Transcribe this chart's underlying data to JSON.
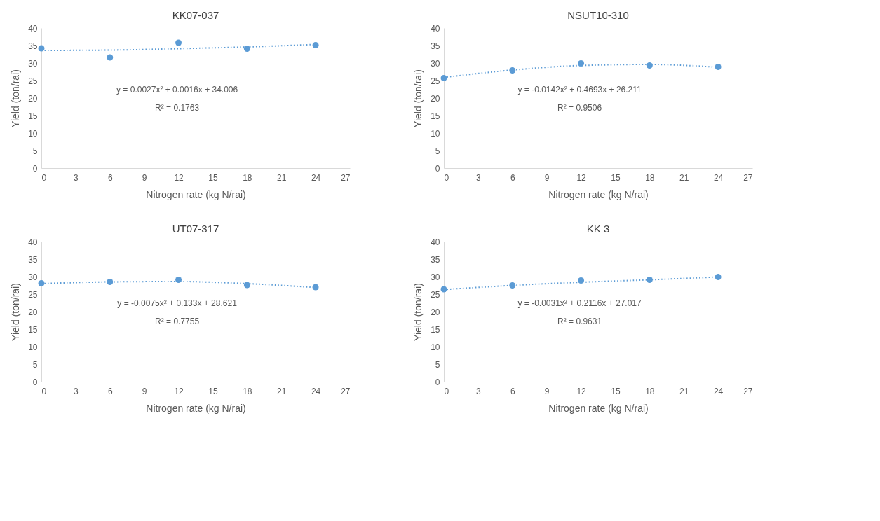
{
  "chart_data": [
    {
      "type": "scatter",
      "title": "KK07-037",
      "xlabel": "Nitrogen rate (kg N/rai)",
      "ylabel": "Yield (ton/rai)",
      "x": [
        0,
        6,
        12,
        18,
        24
      ],
      "xlim": [
        0,
        27
      ],
      "xticks": [
        0,
        3,
        6,
        9,
        12,
        15,
        18,
        21,
        24,
        27
      ],
      "ylim": [
        0,
        40
      ],
      "yticks": [
        0,
        5,
        10,
        15,
        20,
        25,
        30,
        35,
        40
      ],
      "grid": false,
      "marker": "circle",
      "series": [
        {
          "type": "line",
          "line_style": "dotted",
          "color": "#5b9bd5",
          "x": [
            0,
            6,
            12,
            18,
            24
          ],
          "values": [
            33.6,
            33.7,
            34.1,
            34.6,
            35.3
          ],
          "marker": "none"
        },
        {
          "type": "scatter",
          "color": "#5b9bd5",
          "values": [
            34.2,
            31.6,
            35.8,
            34.1,
            35.1
          ]
        }
      ],
      "annotations": [
        "y = 0.0027x² + 0.0016x + 34.006",
        "R² = 0.1763"
      ]
    },
    {
      "type": "scatter",
      "title": "NSUT10-310",
      "xlabel": "Nitrogen rate (kg N/rai)",
      "ylabel": "Yield (ton/rai)",
      "x": [
        0,
        6,
        12,
        18,
        24
      ],
      "xlim": [
        0,
        27
      ],
      "xticks": [
        0,
        3,
        6,
        9,
        12,
        15,
        18,
        21,
        24,
        27
      ],
      "ylim": [
        0,
        40
      ],
      "yticks": [
        0,
        5,
        10,
        15,
        20,
        25,
        30,
        35,
        40
      ],
      "grid": false,
      "marker": "circle",
      "series": [
        {
          "type": "line",
          "line_style": "dotted",
          "color": "#5b9bd5",
          "x": [
            0,
            6,
            12,
            18,
            24
          ],
          "values": [
            25.9,
            28.0,
            29.3,
            29.6,
            28.8
          ],
          "marker": "none"
        },
        {
          "type": "scatter",
          "color": "#5b9bd5",
          "values": [
            25.7,
            27.9,
            29.9,
            29.3,
            28.9
          ]
        }
      ],
      "annotations": [
        "y = -0.0142x² + 0.4693x + 26.211",
        "R² = 0.9506"
      ]
    },
    {
      "type": "scatter",
      "title": "UT07-317",
      "xlabel": "Nitrogen rate (kg N/rai)",
      "ylabel": "Yield (ton/rai)",
      "x": [
        0,
        6,
        12,
        18,
        24
      ],
      "xlim": [
        0,
        27
      ],
      "xticks": [
        0,
        3,
        6,
        9,
        12,
        15,
        18,
        21,
        24,
        27
      ],
      "ylim": [
        0,
        40
      ],
      "yticks": [
        0,
        5,
        10,
        15,
        20,
        25,
        30,
        35,
        40
      ],
      "grid": false,
      "marker": "circle",
      "series": [
        {
          "type": "line",
          "line_style": "dotted",
          "color": "#5b9bd5",
          "x": [
            0,
            6,
            12,
            18,
            24
          ],
          "values": [
            28.0,
            28.5,
            28.6,
            28.0,
            26.9
          ],
          "marker": "none"
        },
        {
          "type": "scatter",
          "color": "#5b9bd5",
          "values": [
            28.1,
            28.5,
            29.1,
            27.6,
            27.0
          ]
        }
      ],
      "annotations": [
        "y = -0.0075x² + 0.133x + 28.621",
        "R² = 0.7755"
      ]
    },
    {
      "type": "scatter",
      "title": "KK 3",
      "xlabel": "Nitrogen rate (kg N/rai)",
      "ylabel": "Yield (ton/rai)",
      "x": [
        0,
        6,
        12,
        18,
        24
      ],
      "xlim": [
        0,
        27
      ],
      "xticks": [
        0,
        3,
        6,
        9,
        12,
        15,
        18,
        21,
        24,
        27
      ],
      "ylim": [
        0,
        40
      ],
      "yticks": [
        0,
        5,
        10,
        15,
        20,
        25,
        30,
        35,
        40
      ],
      "grid": false,
      "marker": "circle",
      "series": [
        {
          "type": "line",
          "line_style": "dotted",
          "color": "#5b9bd5",
          "x": [
            0,
            6,
            12,
            18,
            24
          ],
          "values": [
            26.3,
            27.5,
            28.4,
            29.1,
            29.9
          ],
          "marker": "none"
        },
        {
          "type": "scatter",
          "color": "#5b9bd5",
          "values": [
            26.4,
            27.5,
            28.9,
            29.1,
            29.9
          ]
        }
      ],
      "annotations": [
        "y = -0.0031x² + 0.2116x + 27.017",
        "R² = 0.9631"
      ]
    }
  ]
}
